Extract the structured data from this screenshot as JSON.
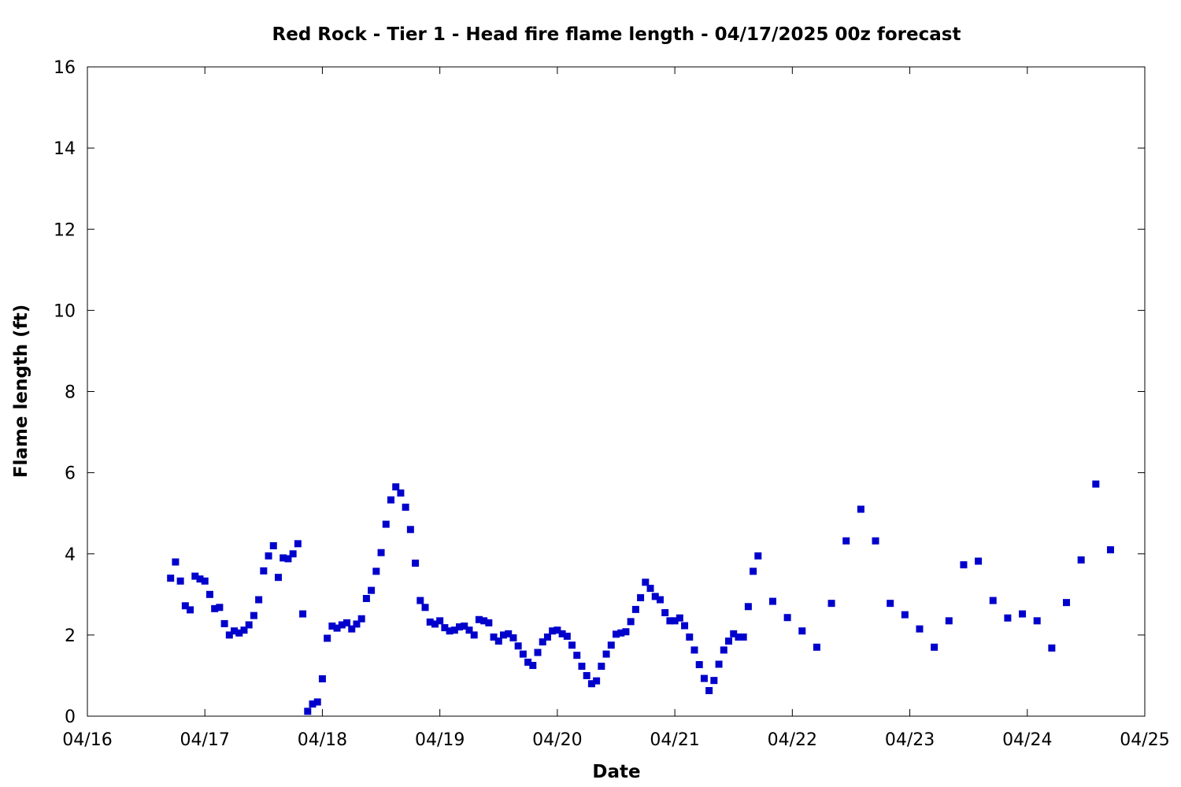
{
  "chart_data": {
    "type": "scatter",
    "title": "Red Rock - Tier 1 - Head fire flame length - 04/17/2025 00z forecast",
    "xlabel": "Date",
    "ylabel": "Flame length (ft)",
    "xlim": [
      "04/16 00:00",
      "04/25 00:00"
    ],
    "ylim": [
      0,
      16
    ],
    "x_ticks": [
      "04/16",
      "04/17",
      "04/18",
      "04/19",
      "04/20",
      "04/21",
      "04/22",
      "04/23",
      "04/24",
      "04/25"
    ],
    "y_ticks": [
      0,
      2,
      4,
      6,
      8,
      10,
      12,
      14,
      16
    ],
    "grid": false,
    "marker": "square",
    "color": "#0000CC",
    "series": [
      {
        "points": [
          [
            "04/16 17:00",
            3.4
          ],
          [
            "04/16 18:00",
            3.8
          ],
          [
            "04/16 19:00",
            3.33
          ],
          [
            "04/16 20:00",
            2.72
          ],
          [
            "04/16 21:00",
            2.62
          ],
          [
            "04/16 22:00",
            3.45
          ],
          [
            "04/16 23:00",
            3.38
          ],
          [
            "04/17 00:00",
            3.33
          ],
          [
            "04/17 01:00",
            3.0
          ],
          [
            "04/17 02:00",
            2.65
          ],
          [
            "04/17 03:00",
            2.68
          ],
          [
            "04/17 04:00",
            2.28
          ],
          [
            "04/17 05:00",
            2.0
          ],
          [
            "04/17 06:00",
            2.1
          ],
          [
            "04/17 07:00",
            2.05
          ],
          [
            "04/17 08:00",
            2.12
          ],
          [
            "04/17 09:00",
            2.25
          ],
          [
            "04/17 10:00",
            2.48
          ],
          [
            "04/17 11:00",
            2.87
          ],
          [
            "04/17 12:00",
            3.58
          ],
          [
            "04/17 13:00",
            3.95
          ],
          [
            "04/17 14:00",
            4.2
          ],
          [
            "04/17 15:00",
            3.42
          ],
          [
            "04/17 16:00",
            3.9
          ],
          [
            "04/17 17:00",
            3.88
          ],
          [
            "04/17 18:00",
            4.0
          ],
          [
            "04/17 19:00",
            4.25
          ],
          [
            "04/17 20:00",
            2.52
          ],
          [
            "04/17 21:00",
            0.12
          ],
          [
            "04/17 22:00",
            0.3
          ],
          [
            "04/17 23:00",
            0.35
          ],
          [
            "04/18 00:00",
            0.92
          ],
          [
            "04/18 01:00",
            1.92
          ],
          [
            "04/18 02:00",
            2.22
          ],
          [
            "04/18 03:00",
            2.17
          ],
          [
            "04/18 04:00",
            2.25
          ],
          [
            "04/18 05:00",
            2.3
          ],
          [
            "04/18 06:00",
            2.15
          ],
          [
            "04/18 07:00",
            2.27
          ],
          [
            "04/18 08:00",
            2.4
          ],
          [
            "04/18 09:00",
            2.9
          ],
          [
            "04/18 10:00",
            3.1
          ],
          [
            "04/18 11:00",
            3.57
          ],
          [
            "04/18 12:00",
            4.03
          ],
          [
            "04/18 13:00",
            4.73
          ],
          [
            "04/18 14:00",
            5.33
          ],
          [
            "04/18 15:00",
            5.65
          ],
          [
            "04/18 16:00",
            5.5
          ],
          [
            "04/18 17:00",
            5.15
          ],
          [
            "04/18 18:00",
            4.6
          ],
          [
            "04/18 19:00",
            3.77
          ],
          [
            "04/18 20:00",
            2.85
          ],
          [
            "04/18 21:00",
            2.68
          ],
          [
            "04/18 22:00",
            2.32
          ],
          [
            "04/18 23:00",
            2.27
          ],
          [
            "04/19 00:00",
            2.35
          ],
          [
            "04/19 01:00",
            2.18
          ],
          [
            "04/19 02:00",
            2.1
          ],
          [
            "04/19 03:00",
            2.12
          ],
          [
            "04/19 04:00",
            2.2
          ],
          [
            "04/19 05:00",
            2.22
          ],
          [
            "04/19 06:00",
            2.12
          ],
          [
            "04/19 07:00",
            2.0
          ],
          [
            "04/19 08:00",
            2.38
          ],
          [
            "04/19 09:00",
            2.35
          ],
          [
            "04/19 10:00",
            2.3
          ],
          [
            "04/19 11:00",
            1.95
          ],
          [
            "04/19 12:00",
            1.85
          ],
          [
            "04/19 13:00",
            2.0
          ],
          [
            "04/19 14:00",
            2.03
          ],
          [
            "04/19 15:00",
            1.93
          ],
          [
            "04/19 16:00",
            1.73
          ],
          [
            "04/19 17:00",
            1.53
          ],
          [
            "04/19 18:00",
            1.33
          ],
          [
            "04/19 19:00",
            1.25
          ],
          [
            "04/19 20:00",
            1.57
          ],
          [
            "04/19 21:00",
            1.83
          ],
          [
            "04/19 22:00",
            1.95
          ],
          [
            "04/19 23:00",
            2.1
          ],
          [
            "04/20 00:00",
            2.12
          ],
          [
            "04/20 01:00",
            2.03
          ],
          [
            "04/20 02:00",
            1.97
          ],
          [
            "04/20 03:00",
            1.75
          ],
          [
            "04/20 04:00",
            1.5
          ],
          [
            "04/20 05:00",
            1.23
          ],
          [
            "04/20 06:00",
            1.0
          ],
          [
            "04/20 07:00",
            0.8
          ],
          [
            "04/20 08:00",
            0.87
          ],
          [
            "04/20 09:00",
            1.23
          ],
          [
            "04/20 10:00",
            1.53
          ],
          [
            "04/20 11:00",
            1.75
          ],
          [
            "04/20 12:00",
            2.02
          ],
          [
            "04/20 13:00",
            2.05
          ],
          [
            "04/20 14:00",
            2.08
          ],
          [
            "04/20 15:00",
            2.33
          ],
          [
            "04/20 16:00",
            2.63
          ],
          [
            "04/20 17:00",
            2.92
          ],
          [
            "04/20 18:00",
            3.3
          ],
          [
            "04/20 19:00",
            3.15
          ],
          [
            "04/20 20:00",
            2.95
          ],
          [
            "04/20 21:00",
            2.87
          ],
          [
            "04/20 22:00",
            2.55
          ],
          [
            "04/20 23:00",
            2.35
          ],
          [
            "04/21 00:00",
            2.35
          ],
          [
            "04/21 01:00",
            2.42
          ],
          [
            "04/21 02:00",
            2.23
          ],
          [
            "04/21 03:00",
            1.95
          ],
          [
            "04/21 04:00",
            1.63
          ],
          [
            "04/21 05:00",
            1.27
          ],
          [
            "04/21 06:00",
            0.93
          ],
          [
            "04/21 07:00",
            0.63
          ],
          [
            "04/21 08:00",
            0.88
          ],
          [
            "04/21 09:00",
            1.28
          ],
          [
            "04/21 10:00",
            1.63
          ],
          [
            "04/21 11:00",
            1.85
          ],
          [
            "04/21 12:00",
            2.03
          ],
          [
            "04/21 13:00",
            1.95
          ],
          [
            "04/21 14:00",
            1.95
          ],
          [
            "04/21 15:00",
            2.7
          ],
          [
            "04/21 16:00",
            3.57
          ],
          [
            "04/21 17:00",
            3.95
          ],
          [
            "04/21 20:00",
            2.83
          ],
          [
            "04/21 23:00",
            2.43
          ],
          [
            "04/22 02:00",
            2.1
          ],
          [
            "04/22 05:00",
            1.7
          ],
          [
            "04/22 08:00",
            2.78
          ],
          [
            "04/22 11:00",
            4.32
          ],
          [
            "04/22 14:00",
            5.1
          ],
          [
            "04/22 17:00",
            4.32
          ],
          [
            "04/22 20:00",
            2.78
          ],
          [
            "04/22 23:00",
            2.5
          ],
          [
            "04/23 02:00",
            2.15
          ],
          [
            "04/23 05:00",
            1.7
          ],
          [
            "04/23 08:00",
            2.35
          ],
          [
            "04/23 11:00",
            3.73
          ],
          [
            "04/23 14:00",
            3.82
          ],
          [
            "04/23 17:00",
            2.85
          ],
          [
            "04/23 20:00",
            2.42
          ],
          [
            "04/23 23:00",
            2.52
          ],
          [
            "04/24 02:00",
            2.35
          ],
          [
            "04/24 05:00",
            1.68
          ],
          [
            "04/24 08:00",
            2.8
          ],
          [
            "04/24 11:00",
            3.85
          ],
          [
            "04/24 14:00",
            5.72
          ],
          [
            "04/24 17:00",
            4.1
          ]
        ]
      }
    ]
  }
}
